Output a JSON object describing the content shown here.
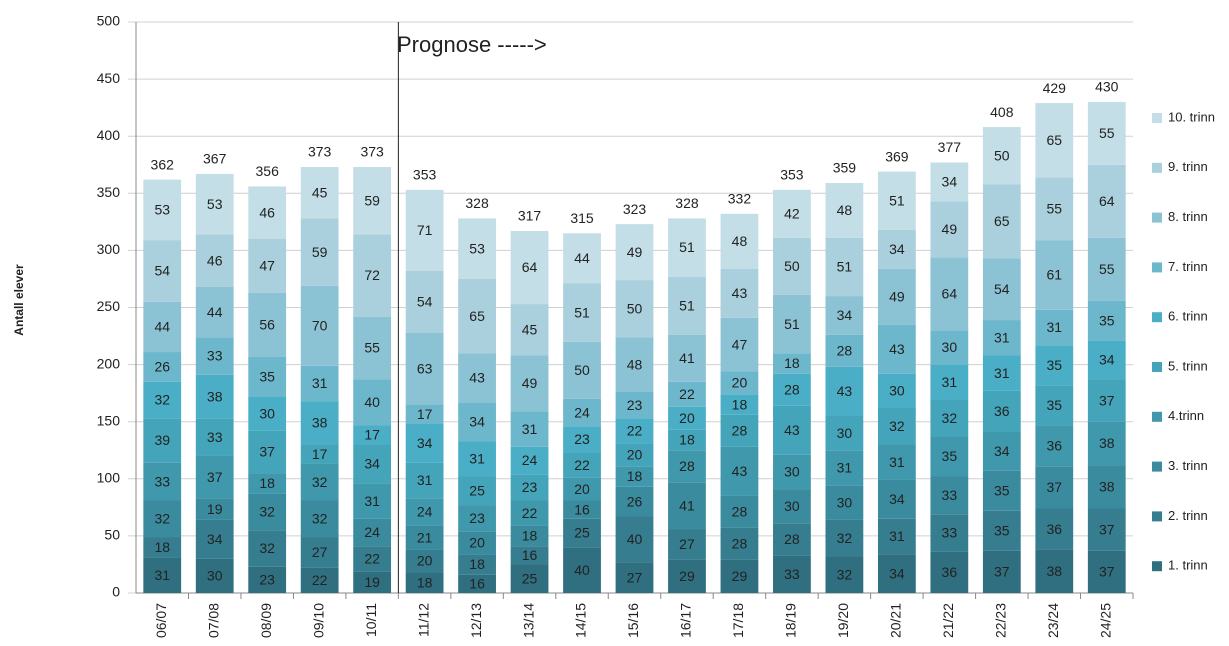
{
  "chart_data": {
    "type": "stacked_bar",
    "y_label": "Antall elever",
    "annotation": "Prognose ----->",
    "categories": [
      "06/07",
      "07/08",
      "08/09",
      "09/10",
      "10/11",
      "11/12",
      "12/13",
      "13/14",
      "14/15",
      "15/16",
      "16/17",
      "17/18",
      "18/19",
      "19/20",
      "20/21",
      "21/22",
      "22/23",
      "23/24",
      "24/25"
    ],
    "series": [
      {
        "name": "1. trinn",
        "color": "#2f6f80",
        "values": [
          31,
          30,
          23,
          22,
          19,
          18,
          16,
          25,
          40,
          27,
          29,
          29,
          33,
          32,
          34,
          36,
          37,
          38,
          37
        ]
      },
      {
        "name": "2. trinn",
        "color": "#357d8f",
        "values": [
          18,
          34,
          32,
          27,
          22,
          20,
          18,
          16,
          25,
          40,
          27,
          28,
          28,
          32,
          31,
          33,
          35,
          36,
          37
        ]
      },
      {
        "name": "3. trinn",
        "color": "#3b8b9f",
        "values": [
          32,
          19,
          32,
          32,
          24,
          21,
          20,
          18,
          16,
          26,
          41,
          28,
          30,
          30,
          34,
          33,
          35,
          37,
          38
        ]
      },
      {
        "name": "4.trinn",
        "color": "#4098ac",
        "values": [
          33,
          37,
          18,
          32,
          31,
          24,
          23,
          22,
          20,
          18,
          28,
          43,
          30,
          31,
          31,
          35,
          34,
          36,
          38
        ]
      },
      {
        "name": "5. trinn",
        "color": "#44a4ba",
        "values": [
          39,
          33,
          37,
          17,
          34,
          31,
          25,
          23,
          22,
          20,
          18,
          28,
          43,
          30,
          32,
          32,
          36,
          35,
          37
        ]
      },
      {
        "name": "6. trinn",
        "color": "#4aaec7",
        "values": [
          32,
          38,
          30,
          38,
          17,
          34,
          31,
          24,
          23,
          22,
          20,
          18,
          28,
          43,
          30,
          31,
          31,
          35,
          34
        ]
      },
      {
        "name": "7. trinn",
        "color": "#6db7cc",
        "values": [
          26,
          33,
          35,
          31,
          40,
          17,
          34,
          31,
          24,
          23,
          22,
          20,
          18,
          28,
          43,
          30,
          31,
          31,
          35
        ]
      },
      {
        "name": "8. trinn",
        "color": "#8cc3d4",
        "values": [
          44,
          44,
          56,
          70,
          55,
          63,
          43,
          49,
          50,
          48,
          41,
          47,
          51,
          34,
          49,
          64,
          54,
          61,
          55
        ]
      },
      {
        "name": "9. trinn",
        "color": "#a9d0dc",
        "values": [
          54,
          46,
          47,
          59,
          72,
          54,
          65,
          45,
          51,
          50,
          51,
          43,
          50,
          51,
          34,
          49,
          65,
          55,
          64
        ]
      },
      {
        "name": "10. trinn",
        "color": "#c3dee7",
        "values": [
          53,
          53,
          46,
          45,
          59,
          71,
          53,
          64,
          44,
          49,
          51,
          48,
          42,
          48,
          51,
          34,
          50,
          65,
          55
        ]
      }
    ],
    "totals": [
      362,
      367,
      356,
      373,
      373,
      353,
      328,
      317,
      315,
      323,
      328,
      332,
      353,
      359,
      369,
      377,
      408,
      429,
      430
    ],
    "ylim": [
      0,
      500
    ],
    "yticks": [
      0,
      50,
      100,
      150,
      200,
      250,
      300,
      350,
      400,
      450,
      500
    ],
    "grid": true,
    "legend": "right"
  }
}
